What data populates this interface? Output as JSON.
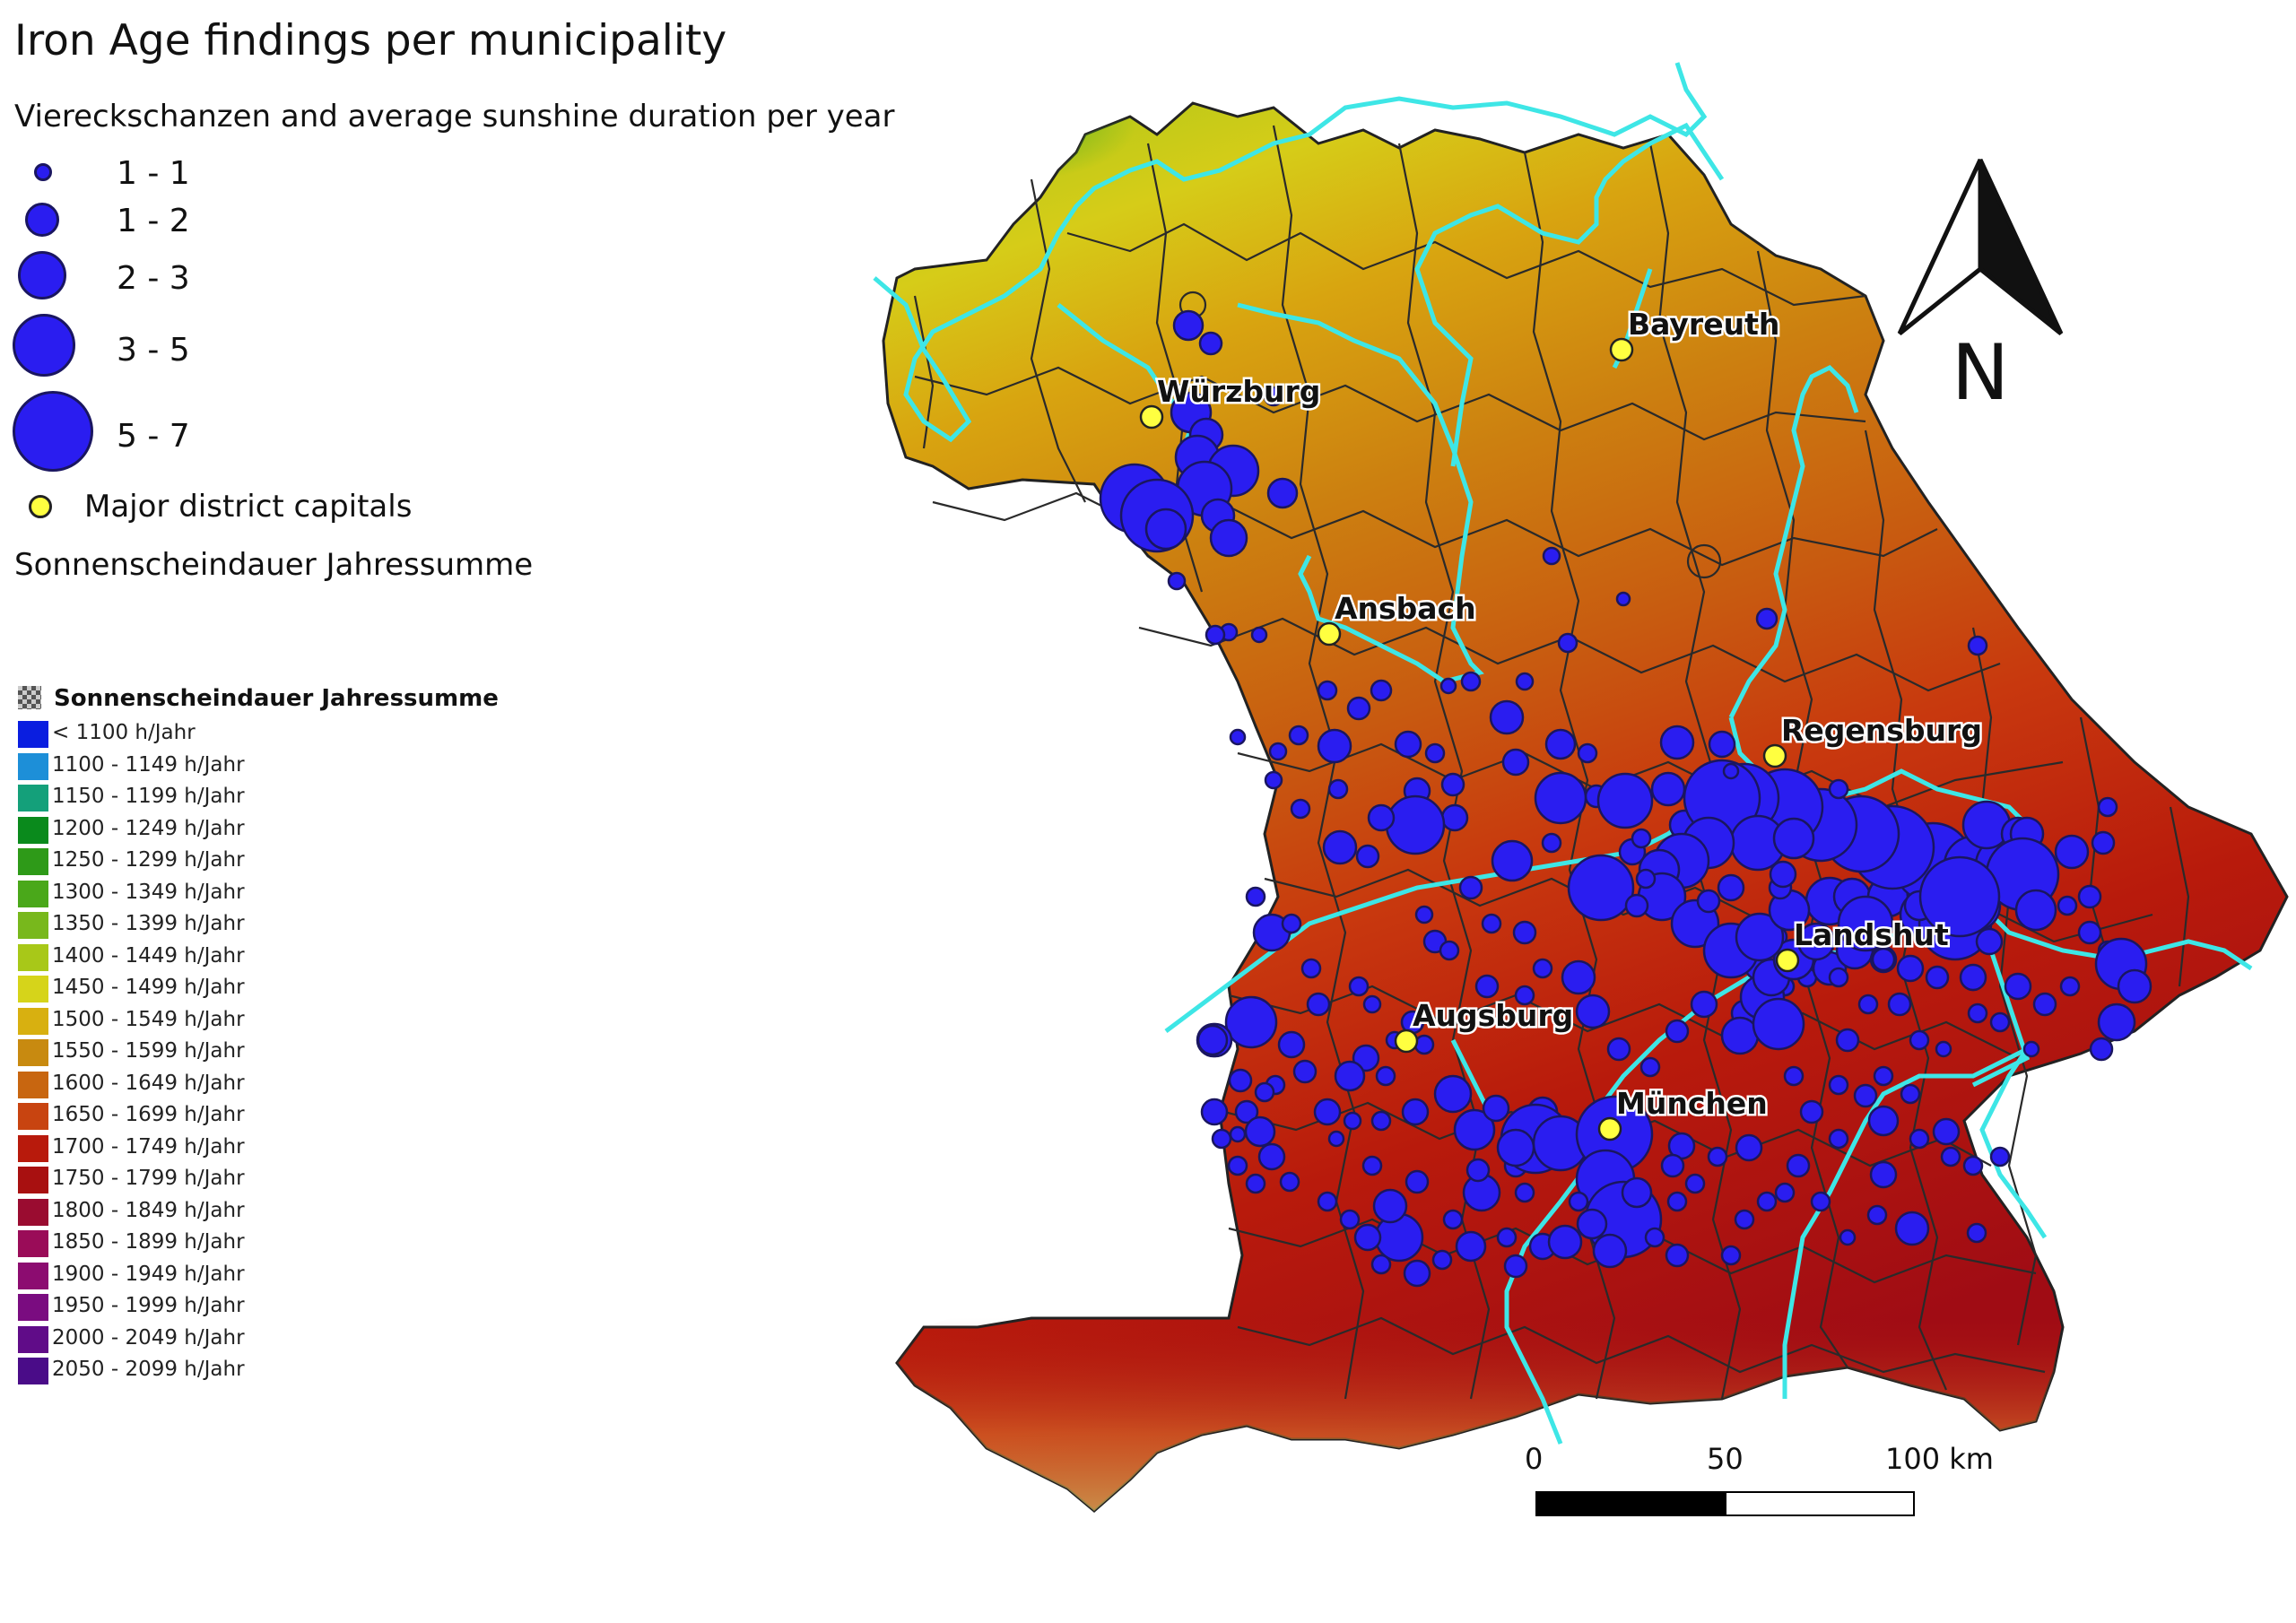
{
  "title": "Iron Age findings per municipality",
  "subtitle": "Viereckschanzen and average sunshine duration per year",
  "size_legend": [
    {
      "label": "1 - 1",
      "class": 1
    },
    {
      "label": "1 - 2",
      "class": 2
    },
    {
      "label": "2 - 3",
      "class": 3
    },
    {
      "label": "3 - 5",
      "class": 4
    },
    {
      "label": "5 - 7",
      "class": 5
    }
  ],
  "capital_legend_label": "Major district capitals",
  "raster_layer_name": "Sonnenscheindauer Jahressumme",
  "raster_legend": {
    "title": "Sonnenscheindauer Jahressumme",
    "classes": [
      {
        "label": "< 1100 h/Jahr",
        "color": "#0a1ee0"
      },
      {
        "label": "1100 - 1149 h/Jahr",
        "color": "#1d8fd8"
      },
      {
        "label": "1150 - 1199 h/Jahr",
        "color": "#14a07a"
      },
      {
        "label": "1200 - 1249 h/Jahr",
        "color": "#0a8a1c"
      },
      {
        "label": "1250 - 1299 h/Jahr",
        "color": "#2e9a18"
      },
      {
        "label": "1300 - 1349 h/Jahr",
        "color": "#4aa81a"
      },
      {
        "label": "1350 - 1399 h/Jahr",
        "color": "#78b81c"
      },
      {
        "label": "1400 - 1449 h/Jahr",
        "color": "#a8c818"
      },
      {
        "label": "1450 - 1499 h/Jahr",
        "color": "#d6d41a"
      },
      {
        "label": "1500 - 1549 h/Jahr",
        "color": "#d8b010"
      },
      {
        "label": "1550 - 1599 h/Jahr",
        "color": "#c88a10"
      },
      {
        "label": "1600 - 1649 h/Jahr",
        "color": "#c86610"
      },
      {
        "label": "1650 - 1699 h/Jahr",
        "color": "#c84410"
      },
      {
        "label": "1700 - 1749 h/Jahr",
        "color": "#b81a0c"
      },
      {
        "label": "1750 - 1799 h/Jahr",
        "color": "#a81010"
      },
      {
        "label": "1800 - 1849 h/Jahr",
        "color": "#9a0c30"
      },
      {
        "label": "1850 - 1899 h/Jahr",
        "color": "#9a0c58"
      },
      {
        "label": "1900 - 1949 h/Jahr",
        "color": "#8c0c70"
      },
      {
        "label": "1950 - 1999 h/Jahr",
        "color": "#7a0c80"
      },
      {
        "label": "2000 - 2049 h/Jahr",
        "color": "#600c88"
      },
      {
        "label": "2050 - 2099 h/Jahr",
        "color": "#4a0c88"
      }
    ]
  },
  "capitals": [
    {
      "name": "Würzburg"
    },
    {
      "name": "Bayreuth"
    },
    {
      "name": "Ansbach"
    },
    {
      "name": "Regensburg"
    },
    {
      "name": "Landshut"
    },
    {
      "name": "Augsburg"
    },
    {
      "name": "München"
    }
  ],
  "north_arrow_label": "N",
  "scale_bar": {
    "labels": [
      "0",
      "50",
      "100 km"
    ]
  },
  "colors": {
    "findings_fill": "#2a1df0",
    "findings_stroke": "#1a1660",
    "capital_fill": "#ffff40",
    "isoline": "#3ee6e6",
    "district_border": "#2a2a2a"
  }
}
